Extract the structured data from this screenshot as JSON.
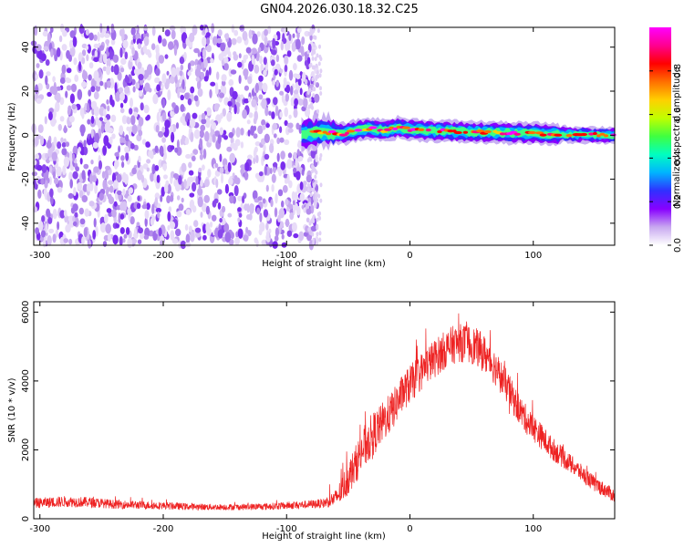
{
  "title": "GN04.2026.030.18.32.C25",
  "chart_data": [
    {
      "type": "heatmap",
      "xlabel": "Height of straight line (km)",
      "ylabel": "Frequency (Hz)",
      "xlim": [
        -305,
        166
      ],
      "ylim": [
        -50,
        49
      ],
      "xticks": [
        -300,
        -200,
        -100,
        0,
        100
      ],
      "xtick_labels": [
        "-300",
        "-200",
        "-100",
        "0",
        "100"
      ],
      "yticks": [
        -40,
        -20,
        0,
        20,
        40
      ],
      "ytick_labels": [
        "-40",
        "-20",
        "0",
        "20",
        "40"
      ],
      "noise_region_x": [
        -305,
        -75
      ],
      "signal_start_x": -88,
      "signal_ridge": [
        {
          "x": -88,
          "y": 0.5
        },
        {
          "x": -70,
          "y": 1.5
        },
        {
          "x": -55,
          "y": 0.5
        },
        {
          "x": -40,
          "y": 2.5
        },
        {
          "x": -30,
          "y": 3.0
        },
        {
          "x": -20,
          "y": 2.0
        },
        {
          "x": -10,
          "y": 3.5
        },
        {
          "x": 0,
          "y": 2.5
        },
        {
          "x": 20,
          "y": 2.0
        },
        {
          "x": 50,
          "y": 1.5
        },
        {
          "x": 80,
          "y": 1.0
        },
        {
          "x": 100,
          "y": 0.8
        },
        {
          "x": 130,
          "y": 0.3
        },
        {
          "x": 166,
          "y": 0.0
        }
      ],
      "colorbar": {
        "label": "Normalized spectral amplitude",
        "range": [
          0.0,
          1.0
        ],
        "ticks": [
          0.0,
          0.2,
          0.4,
          0.6,
          0.8
        ],
        "tick_labels": [
          "0.0",
          "0.2",
          "0.4",
          "0.6",
          "0.8"
        ],
        "colors": [
          "#ffffff",
          "#c8a8f0",
          "#8800ff",
          "#3030ff",
          "#00b4ff",
          "#00ffc0",
          "#40ff40",
          "#c0ff00",
          "#ffd000",
          "#ff7000",
          "#ff0000",
          "#ff0090",
          "#ff00ff"
        ]
      }
    },
    {
      "type": "line",
      "xlabel": "Height of straight line (km)",
      "ylabel": "SNR (10 * v/v)",
      "xlim": [
        -305,
        166
      ],
      "ylim": [
        0,
        6300
      ],
      "xticks": [
        -300,
        -200,
        -100,
        0,
        100
      ],
      "xtick_labels": [
        "-300",
        "-200",
        "-100",
        "0",
        "100"
      ],
      "yticks": [
        0,
        2000,
        4000,
        6000
      ],
      "ytick_labels": [
        "0",
        "2000",
        "4000",
        "6000"
      ],
      "color": "#ee2222",
      "x": [
        -305,
        -280,
        -260,
        -240,
        -220,
        -200,
        -180,
        -160,
        -140,
        -120,
        -100,
        -80,
        -70,
        -60,
        -55,
        -50,
        -45,
        -40,
        -35,
        -30,
        -25,
        -20,
        -15,
        -10,
        -5,
        0,
        5,
        10,
        15,
        20,
        25,
        30,
        35,
        40,
        45,
        50,
        55,
        60,
        65,
        70,
        75,
        80,
        85,
        90,
        95,
        100,
        105,
        110,
        115,
        120,
        125,
        130,
        135,
        140,
        145,
        150,
        155,
        160,
        166
      ],
      "y": [
        450,
        500,
        480,
        420,
        400,
        380,
        350,
        340,
        340,
        350,
        380,
        420,
        450,
        600,
        850,
        1200,
        1500,
        1900,
        2200,
        2450,
        2650,
        2900,
        3100,
        3400,
        3700,
        3900,
        4100,
        4300,
        4500,
        4650,
        4800,
        4950,
        5050,
        5100,
        5100,
        5050,
        4950,
        4800,
        4600,
        4350,
        4050,
        3750,
        3400,
        3100,
        2850,
        2650,
        2450,
        2250,
        2050,
        1900,
        1750,
        1600,
        1450,
        1300,
        1150,
        1000,
        900,
        800,
        650
      ],
      "noise_amplitude": [
        150,
        160,
        150,
        130,
        120,
        110,
        100,
        90,
        90,
        100,
        110,
        120,
        140,
        250,
        400,
        500,
        550,
        600,
        650,
        650,
        600,
        600,
        580,
        560,
        560,
        560,
        560,
        560,
        560,
        560,
        560,
        560,
        560,
        560,
        560,
        560,
        560,
        560,
        540,
        520,
        500,
        480,
        460,
        440,
        420,
        400,
        380,
        360,
        340,
        320,
        300,
        280,
        260,
        250,
        240,
        230,
        220,
        210,
        200
      ]
    }
  ]
}
